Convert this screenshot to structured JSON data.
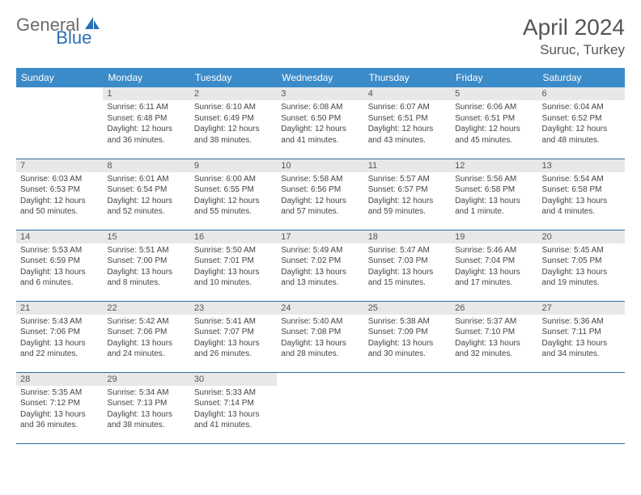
{
  "logo": {
    "general": "General",
    "blue": "Blue",
    "icon_color": "#2b6fb3"
  },
  "header": {
    "month": "April 2024",
    "location": "Suruc, Turkey"
  },
  "colors": {
    "header_bg": "#3b8bc9",
    "header_text": "#ffffff",
    "row_border": "#2e6ca3",
    "daynum_bg": "#e8e8e8",
    "text": "#444444",
    "page_bg": "#ffffff"
  },
  "weekdays": [
    "Sunday",
    "Monday",
    "Tuesday",
    "Wednesday",
    "Thursday",
    "Friday",
    "Saturday"
  ],
  "weeks": [
    [
      null,
      {
        "n": "1",
        "sr": "6:11 AM",
        "ss": "6:48 PM",
        "dl": "12 hours and 36 minutes."
      },
      {
        "n": "2",
        "sr": "6:10 AM",
        "ss": "6:49 PM",
        "dl": "12 hours and 38 minutes."
      },
      {
        "n": "3",
        "sr": "6:08 AM",
        "ss": "6:50 PM",
        "dl": "12 hours and 41 minutes."
      },
      {
        "n": "4",
        "sr": "6:07 AM",
        "ss": "6:51 PM",
        "dl": "12 hours and 43 minutes."
      },
      {
        "n": "5",
        "sr": "6:06 AM",
        "ss": "6:51 PM",
        "dl": "12 hours and 45 minutes."
      },
      {
        "n": "6",
        "sr": "6:04 AM",
        "ss": "6:52 PM",
        "dl": "12 hours and 48 minutes."
      }
    ],
    [
      {
        "n": "7",
        "sr": "6:03 AM",
        "ss": "6:53 PM",
        "dl": "12 hours and 50 minutes."
      },
      {
        "n": "8",
        "sr": "6:01 AM",
        "ss": "6:54 PM",
        "dl": "12 hours and 52 minutes."
      },
      {
        "n": "9",
        "sr": "6:00 AM",
        "ss": "6:55 PM",
        "dl": "12 hours and 55 minutes."
      },
      {
        "n": "10",
        "sr": "5:58 AM",
        "ss": "6:56 PM",
        "dl": "12 hours and 57 minutes."
      },
      {
        "n": "11",
        "sr": "5:57 AM",
        "ss": "6:57 PM",
        "dl": "12 hours and 59 minutes."
      },
      {
        "n": "12",
        "sr": "5:56 AM",
        "ss": "6:58 PM",
        "dl": "13 hours and 1 minute."
      },
      {
        "n": "13",
        "sr": "5:54 AM",
        "ss": "6:58 PM",
        "dl": "13 hours and 4 minutes."
      }
    ],
    [
      {
        "n": "14",
        "sr": "5:53 AM",
        "ss": "6:59 PM",
        "dl": "13 hours and 6 minutes."
      },
      {
        "n": "15",
        "sr": "5:51 AM",
        "ss": "7:00 PM",
        "dl": "13 hours and 8 minutes."
      },
      {
        "n": "16",
        "sr": "5:50 AM",
        "ss": "7:01 PM",
        "dl": "13 hours and 10 minutes."
      },
      {
        "n": "17",
        "sr": "5:49 AM",
        "ss": "7:02 PM",
        "dl": "13 hours and 13 minutes."
      },
      {
        "n": "18",
        "sr": "5:47 AM",
        "ss": "7:03 PM",
        "dl": "13 hours and 15 minutes."
      },
      {
        "n": "19",
        "sr": "5:46 AM",
        "ss": "7:04 PM",
        "dl": "13 hours and 17 minutes."
      },
      {
        "n": "20",
        "sr": "5:45 AM",
        "ss": "7:05 PM",
        "dl": "13 hours and 19 minutes."
      }
    ],
    [
      {
        "n": "21",
        "sr": "5:43 AM",
        "ss": "7:06 PM",
        "dl": "13 hours and 22 minutes."
      },
      {
        "n": "22",
        "sr": "5:42 AM",
        "ss": "7:06 PM",
        "dl": "13 hours and 24 minutes."
      },
      {
        "n": "23",
        "sr": "5:41 AM",
        "ss": "7:07 PM",
        "dl": "13 hours and 26 minutes."
      },
      {
        "n": "24",
        "sr": "5:40 AM",
        "ss": "7:08 PM",
        "dl": "13 hours and 28 minutes."
      },
      {
        "n": "25",
        "sr": "5:38 AM",
        "ss": "7:09 PM",
        "dl": "13 hours and 30 minutes."
      },
      {
        "n": "26",
        "sr": "5:37 AM",
        "ss": "7:10 PM",
        "dl": "13 hours and 32 minutes."
      },
      {
        "n": "27",
        "sr": "5:36 AM",
        "ss": "7:11 PM",
        "dl": "13 hours and 34 minutes."
      }
    ],
    [
      {
        "n": "28",
        "sr": "5:35 AM",
        "ss": "7:12 PM",
        "dl": "13 hours and 36 minutes."
      },
      {
        "n": "29",
        "sr": "5:34 AM",
        "ss": "7:13 PM",
        "dl": "13 hours and 38 minutes."
      },
      {
        "n": "30",
        "sr": "5:33 AM",
        "ss": "7:14 PM",
        "dl": "13 hours and 41 minutes."
      },
      null,
      null,
      null,
      null
    ]
  ],
  "labels": {
    "sunrise": "Sunrise:",
    "sunset": "Sunset:",
    "daylight": "Daylight:"
  }
}
